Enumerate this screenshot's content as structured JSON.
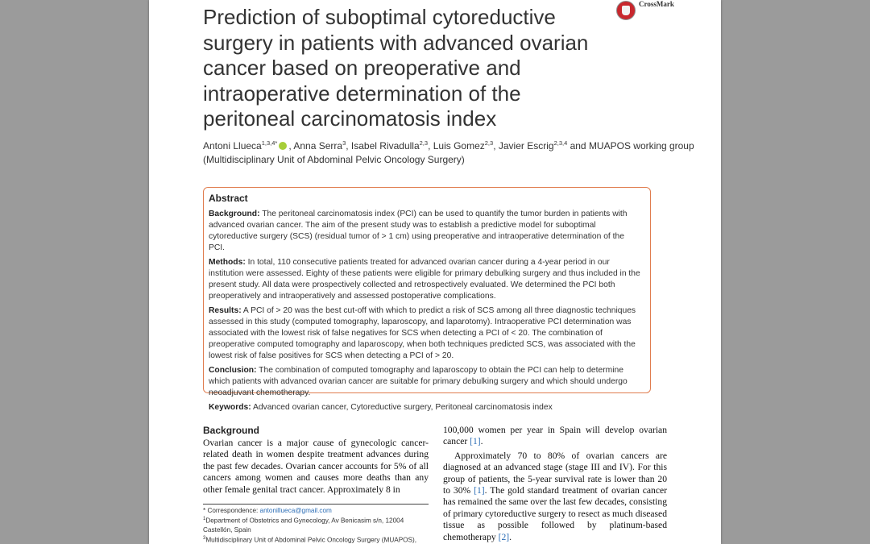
{
  "paper": {
    "title_lines": [
      "Prediction of suboptimal cytoreductive",
      "surgery in patients with advanced ovarian",
      "cancer based on preoperative and",
      "intraoperative determination of the",
      "peritoneal carcinomatosis index"
    ],
    "crossmark_label": "CrossMark",
    "authors": [
      {
        "name": "Antoni Llueca",
        "sup": "1,3,4*",
        "orcid": true
      },
      {
        "name": ", Anna Serra",
        "sup": "3"
      },
      {
        "name": ", Isabel Rivadulla",
        "sup": "2,3"
      },
      {
        "name": ", Luis Gomez",
        "sup": "2,3"
      },
      {
        "name": ", Javier Escrig",
        "sup": "2,3,4"
      },
      {
        "name": " and MUAPOS working group",
        "sup": ""
      }
    ],
    "group_affiliation": "(Multidisciplinary Unit of Abdominal Pelvic Oncology Surgery)"
  },
  "abstract": {
    "heading": "Abstract",
    "background_label": "Background:",
    "background_text": " The peritoneal carcinomatosis index (PCI) can be used to quantify the tumor burden in patients with advanced ovarian cancer. The aim of the present study was to establish a predictive model for suboptimal cytoreductive surgery (SCS) (residual tumor of > 1 cm) using preoperative and intraoperative determination of the PCI.",
    "methods_label": "Methods:",
    "methods_text": " In total, 110 consecutive patients treated for advanced ovarian cancer during a 4-year period in our institution were assessed. Eighty of these patients were eligible for primary debulking surgery and thus included in the present study. All data were prospectively collected and retrospectively evaluated. We determined the PCI both preoperatively and intraoperatively and assessed postoperative complications.",
    "results_label": "Results:",
    "results_text": " A PCI of > 20 was the best cut-off with which to predict a risk of SCS among all three diagnostic techniques assessed in this study (computed tomography, laparoscopy, and laparotomy). Intraoperative PCI determination was associated with the lowest risk of false negatives for SCS when detecting a PCI of < 20. The combination of preoperative computed tomography and laparoscopy, when both techniques predicted SCS, was associated with the lowest risk of false positives for SCS when detecting a PCI of > 20.",
    "conclusion_label": "Conclusion:",
    "conclusion_text": " The combination of computed tomography and laparoscopy to obtain the PCI can help to determine which patients with advanced ovarian cancer are suitable for primary debulking surgery and which should undergo neoadjuvant chemotherapy.",
    "keywords_label": "Keywords:",
    "keywords_text": " Advanced ovarian cancer, Cytoreductive surgery, Peritoneal carcinomatosis index"
  },
  "body": {
    "section_heading": "Background",
    "left_p1": "Ovarian cancer is a major cause of gynecologic cancer-related death in women despite treatment advances during the past few decades. Ovarian cancer accounts for 5% of all cancers among women and causes more deaths than any other female genital tract cancer. Approximately 8 in",
    "right_p1_a": "100,000 women per year in Spain will develop ovarian cancer ",
    "right_p1_ref": "[1]",
    "right_p1_b": ".",
    "right_p2_a": "Approximately 70 to 80% of ovarian cancers are diagnosed at an advanced stage (stage III and IV). For this group of patients, the 5-year survival rate is lower than 20 to 30% ",
    "right_p2_ref": "[1]",
    "right_p2_b": ". The gold standard treatment of ovarian cancer has remained the same over the last few decades, consisting of primary cytoreductive surgery to resect as much diseased tissue as possible followed by platinum-based chemotherapy ",
    "right_p2_ref2": "[2]",
    "right_p2_c": "."
  },
  "footnotes": {
    "corr_label": "* Correspondence: ",
    "corr_email": "antonillueca@gmail.com",
    "aff1_sup": "1",
    "aff1_line1": "Department of Obstetrics and Gynecology, Av Benicasim s/n, 12004",
    "aff1_line2": "Castellón, Spain",
    "aff3_sup": "3",
    "aff3_line1": "Multidisciplinary Unit of Abdominal Pelvic Oncology Surgery (MUAPOS),"
  },
  "colors": {
    "abstract_border": "#e07d4f",
    "link": "#2a6cb5",
    "viewer_background": "#9b9b9b"
  }
}
